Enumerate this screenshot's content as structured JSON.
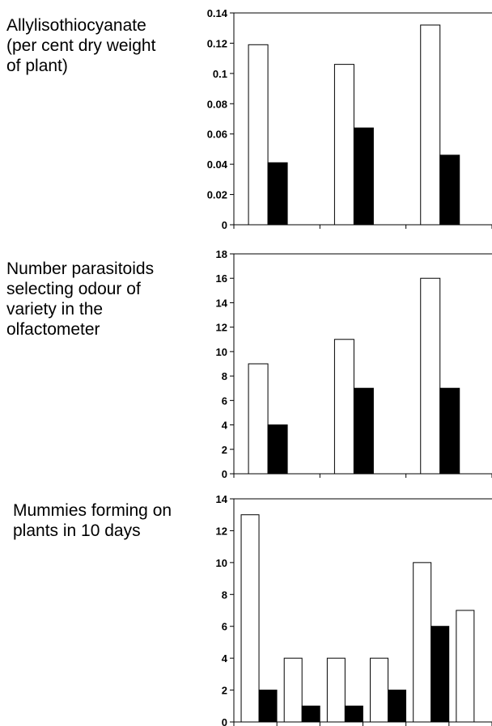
{
  "chart_data": [
    {
      "type": "bar",
      "title": "Allylisothiocyanate\n(per cent dry weight\nof plant)",
      "ylim": [
        0,
        0.14
      ],
      "yticks": [
        "0",
        "0.02",
        "0.04",
        "0.06",
        "0.08",
        "0.1",
        "0.12",
        "0.14"
      ],
      "groups": 3,
      "series": [
        {
          "fill": "#ffffff",
          "values": [
            0.119,
            0.106,
            0.132
          ]
        },
        {
          "fill": "#000000",
          "values": [
            0.041,
            0.064,
            0.046
          ]
        }
      ]
    },
    {
      "type": "bar",
      "title": "Number parasitoids\nselecting odour  of\nvariety in the\nolfactometer",
      "ylim": [
        0,
        18
      ],
      "yticks": [
        "0",
        "2",
        "4",
        "6",
        "8",
        "10",
        "12",
        "14",
        "16",
        "18"
      ],
      "groups": 3,
      "series": [
        {
          "fill": "#ffffff",
          "values": [
            9,
            11,
            16
          ]
        },
        {
          "fill": "#000000",
          "values": [
            4,
            7,
            7
          ]
        }
      ]
    },
    {
      "type": "bar",
      "title": "Mummies forming on\nplants in 10 days",
      "ylim": [
        0,
        14
      ],
      "yticks": [
        "0",
        "2",
        "4",
        "6",
        "8",
        "10",
        "12",
        "14"
      ],
      "groups": 6,
      "series": [
        {
          "fill": "#ffffff",
          "values": [
            13,
            4,
            4,
            4,
            10,
            7
          ]
        },
        {
          "fill": "#000000",
          "values": [
            2,
            1,
            1,
            2,
            6,
            null
          ]
        }
      ]
    }
  ]
}
